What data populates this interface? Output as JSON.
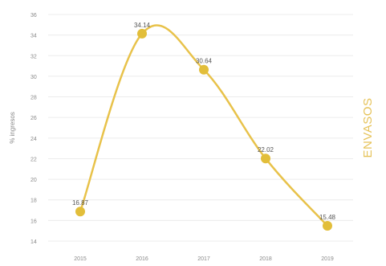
{
  "colors": {
    "line": "#E8C24A",
    "marker": "#E2BE3A",
    "side_title": "#E6C35A",
    "grid": "#ECECEC",
    "text": "#8A8A8A"
  },
  "side_title": "ENVASOS",
  "chart_data": {
    "type": "line",
    "title": "",
    "xlabel": "",
    "ylabel": "% ingresos",
    "categories": [
      "2015",
      "2016",
      "2017",
      "2018",
      "2019"
    ],
    "series": [
      {
        "values": [
          16.87,
          34.14,
          30.64,
          22.02,
          15.48
        ],
        "labels": [
          "16.87",
          "34.14",
          "30.64",
          "22.02",
          "15.48"
        ]
      }
    ],
    "yticks": [
      "14",
      "16",
      "18",
      "20",
      "22",
      "24",
      "26",
      "28",
      "30",
      "32",
      "34",
      "36"
    ],
    "ylim": [
      14,
      36
    ],
    "grid": true,
    "legend": "none",
    "curve": "smooth"
  }
}
